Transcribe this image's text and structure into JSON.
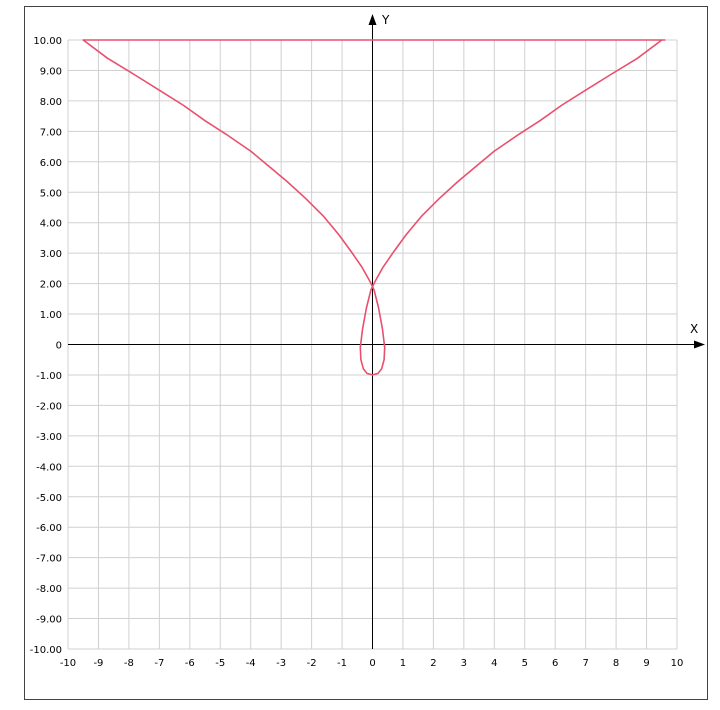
{
  "chart_data": {
    "type": "line",
    "title": "",
    "xlabel": "X",
    "ylabel": "Y",
    "xlim": [
      -10,
      10
    ],
    "ylim": [
      -10,
      10
    ],
    "grid": true,
    "x_ticks": [
      -10,
      -9,
      -8,
      -7,
      -6,
      -5,
      -4,
      -3,
      -2,
      -1,
      0,
      1,
      2,
      3,
      4,
      5,
      6,
      7,
      8,
      9,
      10
    ],
    "x_tick_labels": [
      "-10",
      "-9",
      "-8",
      "-7",
      "-6",
      "-5",
      "-4",
      "-3",
      "-2",
      "-1",
      "0",
      "1",
      "2",
      "3",
      "4",
      "5",
      "6",
      "7",
      "8",
      "9",
      "10"
    ],
    "y_ticks": [
      10,
      9,
      8,
      7,
      6,
      5,
      4,
      3,
      2,
      1,
      0,
      -1,
      -2,
      -3,
      -4,
      -5,
      -6,
      -7,
      -8,
      -9,
      -10
    ],
    "y_tick_labels": [
      "10.00",
      "9.00",
      "8.00",
      "7.00",
      "6.00",
      "5.00",
      "4.00",
      "3.00",
      "2.00",
      "1.00",
      "0",
      "-1.00",
      "-2.00",
      "-3.00",
      "-4.00",
      "-5.00",
      "-6.00",
      "-7.00",
      "-8.00",
      "-9.00",
      "-10.00"
    ],
    "series": [
      {
        "color": "#e8506e",
        "x": [
          -9.5,
          -8.7,
          -7.8,
          -7.0,
          -6.2,
          -5.5,
          -4.8,
          -4.0,
          -3.4,
          -2.8,
          -2.2,
          -1.6,
          -1.1,
          -0.7,
          -0.35,
          -0.1,
          0.05,
          0.2,
          0.33,
          0.4,
          0.38,
          0.3,
          0.18,
          0.0,
          -0.18,
          -0.3,
          -0.38,
          -0.4,
          -0.33,
          -0.2,
          -0.05,
          0.1,
          0.35,
          0.7,
          1.1,
          1.6,
          2.2,
          2.8,
          3.4,
          4.0,
          4.8,
          5.5,
          6.2,
          7.0,
          7.8,
          8.7,
          9.5,
          9.6,
          9.0,
          8.0,
          7.0,
          6.0,
          5.0,
          4.0,
          3.0,
          2.0,
          1.0,
          0.0,
          -1.0,
          -2.0,
          -3.0,
          -4.0,
          -5.0,
          -6.0,
          -7.0,
          -8.0,
          -9.0,
          -9.5
        ],
        "y": [
          10,
          9.4,
          8.85,
          8.35,
          7.85,
          7.35,
          6.9,
          6.35,
          5.85,
          5.35,
          4.8,
          4.2,
          3.6,
          3.05,
          2.55,
          2.1,
          1.8,
          1.2,
          0.5,
          -0.1,
          -0.5,
          -0.8,
          -0.95,
          -1.0,
          -0.95,
          -0.8,
          -0.5,
          -0.1,
          0.5,
          1.2,
          1.8,
          2.1,
          2.55,
          3.05,
          3.6,
          4.2,
          4.8,
          5.35,
          5.85,
          6.35,
          6.9,
          7.35,
          7.85,
          8.35,
          8.85,
          9.4,
          10,
          10,
          10,
          10,
          10,
          10,
          10,
          10,
          10,
          10,
          10,
          10,
          10,
          10,
          10,
          10,
          10,
          10,
          10,
          10,
          10,
          10
        ]
      }
    ]
  }
}
